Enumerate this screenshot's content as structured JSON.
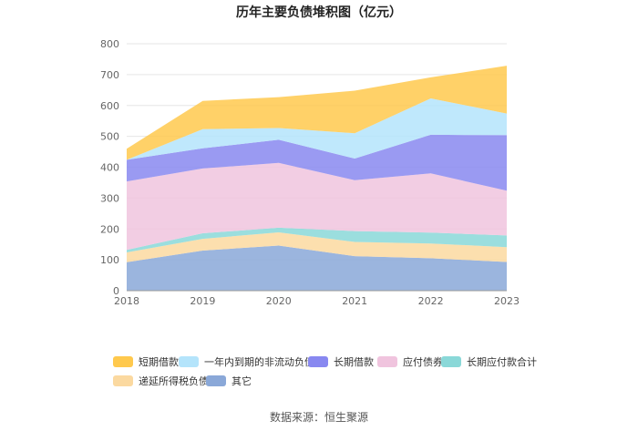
{
  "chart_data": {
    "type": "area",
    "stacked": true,
    "title": "历年主要负债堆积图（亿元）",
    "x": [
      "2018",
      "2019",
      "2020",
      "2021",
      "2022",
      "2023"
    ],
    "ylim": [
      0,
      800
    ],
    "yticks": [
      "0",
      "100",
      "200",
      "300",
      "400",
      "500",
      "600",
      "700",
      "800"
    ],
    "series": [
      {
        "name": "其它",
        "color": "#8aa8d8",
        "values": [
          92,
          130,
          146,
          112,
          105,
          93
        ]
      },
      {
        "name": "递延所得税负债",
        "color": "#fbd9a0",
        "values": [
          32,
          38,
          43,
          46,
          48,
          48
        ]
      },
      {
        "name": "长期应付款合计",
        "color": "#8ad8d8",
        "values": [
          8,
          18,
          15,
          35,
          35,
          38
        ]
      },
      {
        "name": "应付债券",
        "color": "#f0c4de",
        "values": [
          222,
          210,
          210,
          165,
          192,
          145
        ]
      },
      {
        "name": "长期借款",
        "color": "#8888f0",
        "values": [
          70,
          65,
          75,
          70,
          125,
          180
        ]
      },
      {
        "name": "一年内到期的非流动负债",
        "color": "#b4e4fb",
        "values": [
          0,
          62,
          38,
          82,
          118,
          70
        ]
      },
      {
        "name": "短期借款",
        "color": "#ffc94d",
        "values": [
          36,
          92,
          100,
          138,
          68,
          155
        ]
      }
    ],
    "legend_position": "bottom",
    "grid": true
  },
  "source": "数据来源：恒生聚源"
}
